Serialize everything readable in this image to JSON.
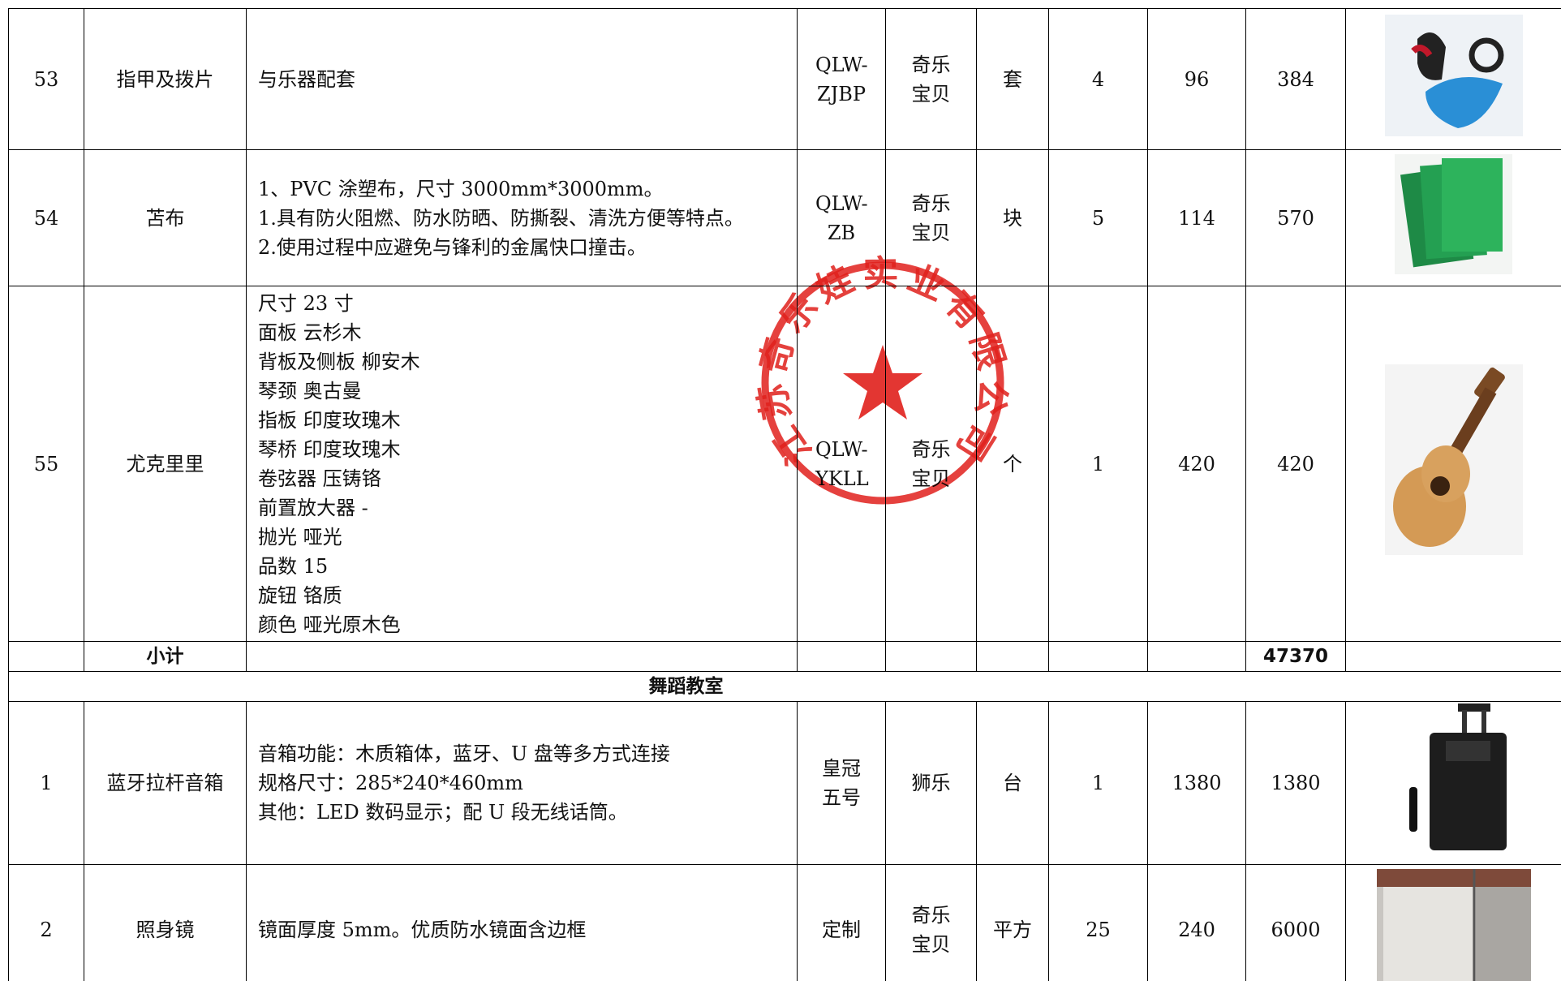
{
  "table": {
    "rows": [
      {
        "no": 53,
        "name": "指甲及拨片",
        "spec": [
          "与乐器配套"
        ],
        "model": "QLW-ZJBP",
        "brand": "奇乐宝贝",
        "unit": "套",
        "qty": 4,
        "price": 96,
        "total": 384
      },
      {
        "no": 54,
        "name": "苫布",
        "spec": [
          "1、PVC 涂塑布，尺寸 3000mm*3000mm。",
          "1.具有防火阻燃、防水防晒、防撕裂、清洗方便等特点。",
          "2.使用过程中应避免与锋利的金属快口撞击。"
        ],
        "model": "QLW-ZB",
        "brand": "奇乐宝贝",
        "unit": "块",
        "qty": 5,
        "price": 114,
        "total": 570
      },
      {
        "no": 55,
        "name": "尤克里里",
        "spec": [
          "尺寸 23 寸",
          "面板 云杉木",
          "背板及侧板 柳安木",
          "琴颈 奥古曼",
          "指板 印度玫瑰木",
          "琴桥 印度玫瑰木",
          "卷弦器 压铸铬",
          "前置放大器 -",
          "抛光 哑光",
          "品数 15",
          "旋钮 铬质",
          "颜色 哑光原木色"
        ],
        "model": "QLW-YKLL",
        "brand": "奇乐宝贝",
        "unit": "个",
        "qty": 1,
        "price": 420,
        "total": 420
      }
    ],
    "subtotal": {
      "label": "小计",
      "total": 47370
    },
    "section": "舞蹈教室",
    "rows2": [
      {
        "no": 1,
        "name": "蓝牙拉杆音箱",
        "spec": [
          "音箱功能：木质箱体，蓝牙、U 盘等多方式连接",
          "规格尺寸：285*240*460mm",
          "其他：LED 数码显示；配 U 段无线话筒。"
        ],
        "model": "皇冠五号",
        "brand": "狮乐",
        "unit": "台",
        "qty": 1,
        "price": 1380,
        "total": 1380
      },
      {
        "no": 2,
        "name": "照身镜",
        "spec": [
          "镜面厚度 5mm。优质防水镜面含边框"
        ],
        "model": "定制",
        "brand": "奇乐宝贝",
        "unit": "平方",
        "qty": 25,
        "price": 240,
        "total": 6000
      }
    ]
  },
  "stamp": {
    "text": "江苏奇乐娃实业有限公司"
  }
}
